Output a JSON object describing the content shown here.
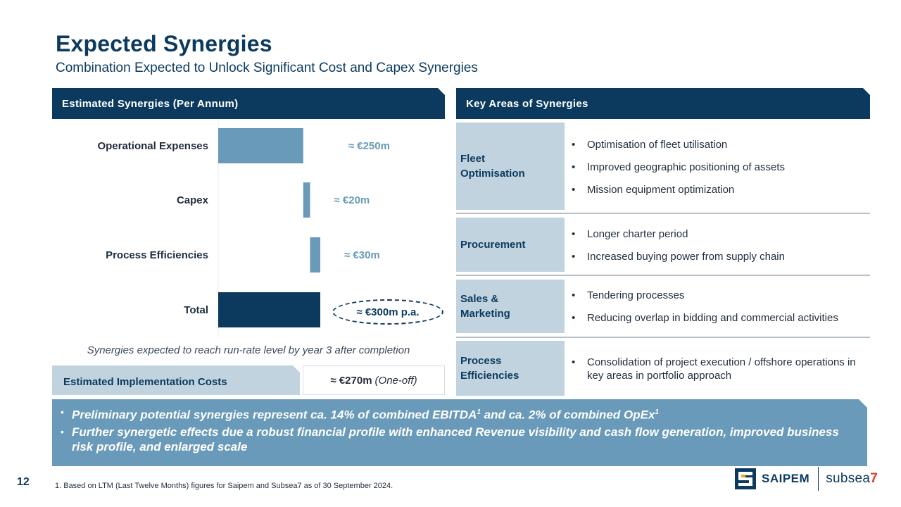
{
  "header": {
    "title": "Expected Synergies",
    "subtitle": "Combination Expected to Unlock Significant Cost and Capex Synergies"
  },
  "left_panel": {
    "title": "Estimated Synergies (Per Annum)",
    "note": "Synergies expected to reach run-rate level by year 3 after completion",
    "implementation": {
      "label": "Estimated Implementation Costs",
      "value": "≈ €270m",
      "value_note": "(One-off)"
    }
  },
  "chart_data": {
    "type": "bar",
    "subtype": "waterfall",
    "orientation": "horizontal",
    "categories": [
      "Operational Expenses",
      "Capex",
      "Process Efficiencies",
      "Total"
    ],
    "values": [
      250,
      20,
      30,
      300
    ],
    "labels": [
      "≈ €250m",
      "≈ €20m",
      "≈ €30m",
      "≈ €300m p.a."
    ],
    "unit": "€m",
    "colors": {
      "increment": "#6a9ab9",
      "total": "#0b3a5e"
    }
  },
  "right_panel": {
    "title": "Key Areas of Synergies",
    "areas": [
      {
        "label_lines": [
          "Fleet",
          "Optimisation"
        ],
        "bullets": [
          "Optimisation of fleet utilisation",
          "Improved geographic positioning of assets",
          "Mission equipment optimization"
        ]
      },
      {
        "label_lines": [
          "Procurement"
        ],
        "bullets": [
          "Longer charter period",
          "Increased buying power from supply chain"
        ]
      },
      {
        "label_lines": [
          "Sales &",
          "Marketing"
        ],
        "bullets": [
          "Tendering processes",
          "Reducing overlap in bidding and commercial activities"
        ]
      },
      {
        "label_lines": [
          "Process",
          "Efficiencies"
        ],
        "bullets": [
          "Consolidation of project execution / offshore operations in key areas in portfolio approach"
        ]
      }
    ]
  },
  "banner": {
    "bullets": [
      "Preliminary potential synergies represent ca. 14% of combined EBITDA",
      "Further synergetic effects due a robust financial profile with enhanced Revenue visibility and cash flow generation, improved business risk profile, and enlarged scale"
    ],
    "bullet1_parts": [
      "Preliminary potential synergies represent ca. 14% of combined EBITDA",
      "1",
      " and ca. 2% of combined OpEx",
      "1"
    ]
  },
  "footer": {
    "page_number": "12",
    "footnote": "1.  Based on LTM (Last Twelve Months) figures for Saipem and Subsea7 as of 30 September 2024.",
    "logo_saipem": "SAIPEM",
    "logo_subsea": "subsea",
    "logo_subsea_num": "7"
  },
  "colors": {
    "navy": "#0b3a5e",
    "steel_blue": "#6a9ab9",
    "light_blue": "#c2d3e0",
    "accent_red": "#e03a2f"
  }
}
